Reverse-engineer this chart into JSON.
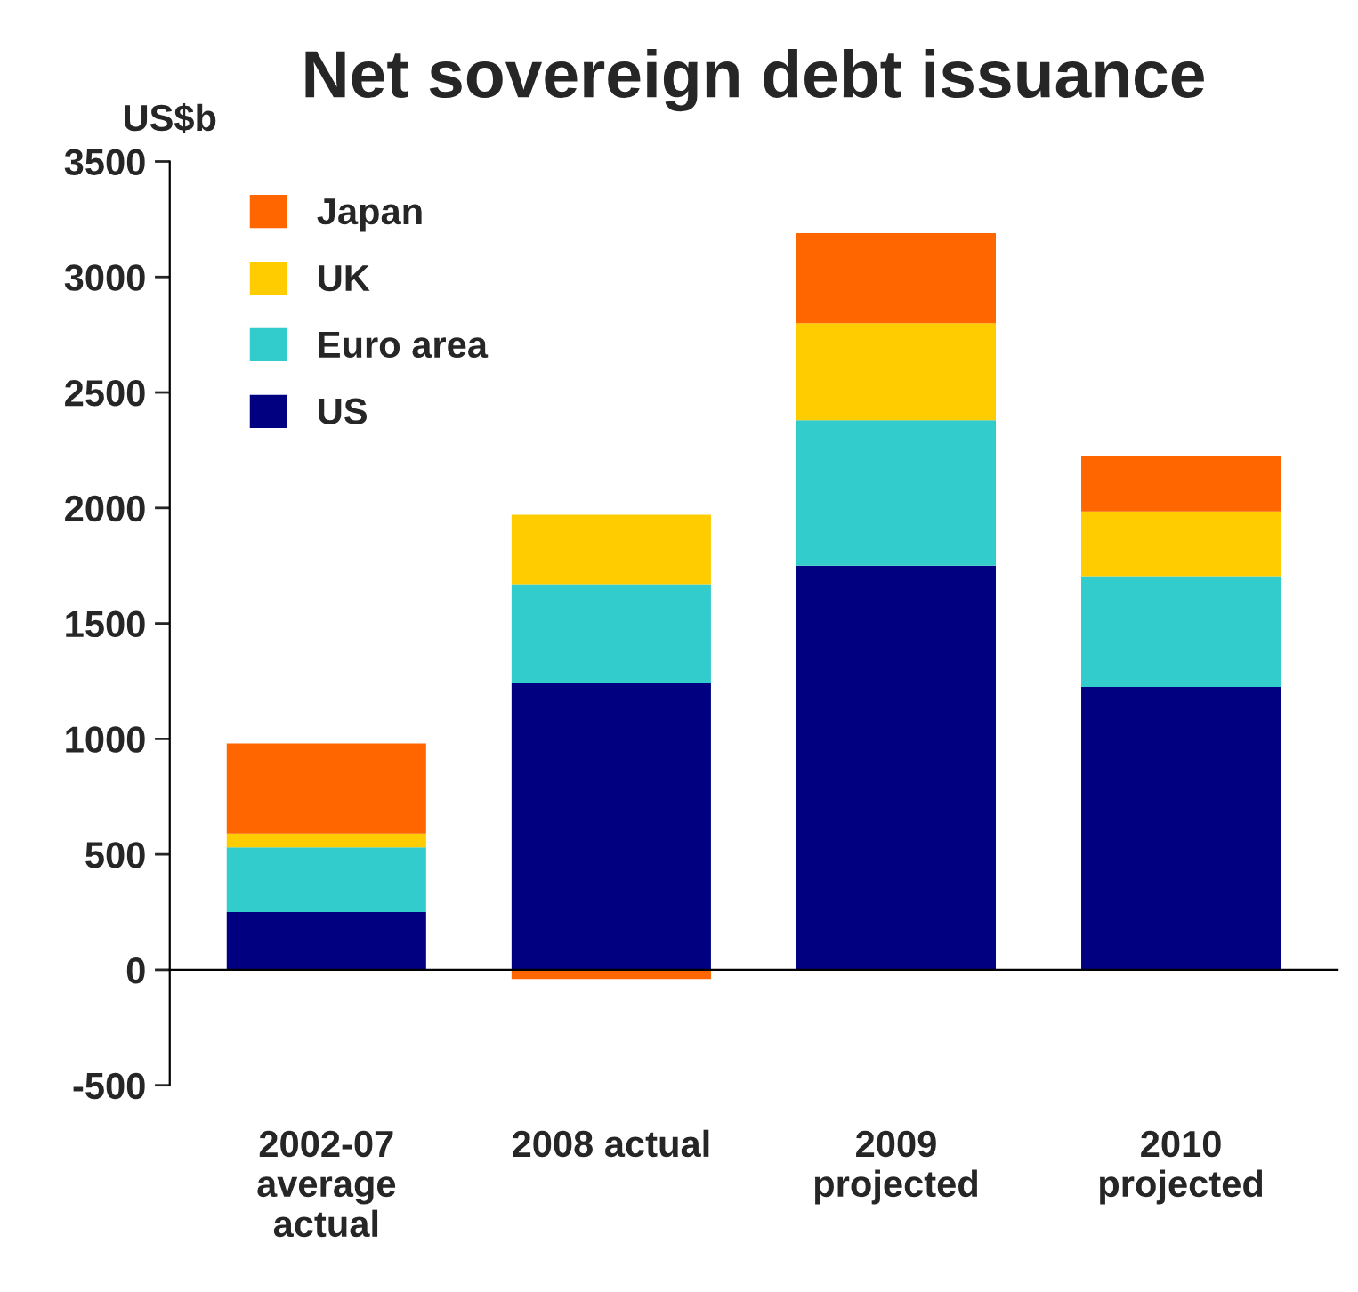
{
  "chart_data": {
    "type": "bar",
    "title": "Net sovereign debt issuance",
    "ylabel": "US$b",
    "categories": [
      "2002-07\naverage\nactual",
      "2008 actual",
      "2009\nprojected",
      "2010\nprojected"
    ],
    "stacked": true,
    "series": [
      {
        "name": "US",
        "color": "#000080",
        "values": [
          250,
          1240,
          1750,
          1225
        ]
      },
      {
        "name": "Euro area",
        "color": "#33cccc",
        "values": [
          280,
          430,
          630,
          480
        ]
      },
      {
        "name": "UK",
        "color": "#ffcc00",
        "values": [
          60,
          300,
          420,
          280
        ]
      },
      {
        "name": "Japan",
        "color": "#ff6600",
        "values": [
          390,
          -40,
          390,
          240
        ]
      }
    ],
    "ylim": [
      -500,
      3500
    ],
    "yticks": [
      -500,
      0,
      500,
      1000,
      1500,
      2000,
      2500,
      3000,
      3500
    ],
    "legend": "top left"
  }
}
